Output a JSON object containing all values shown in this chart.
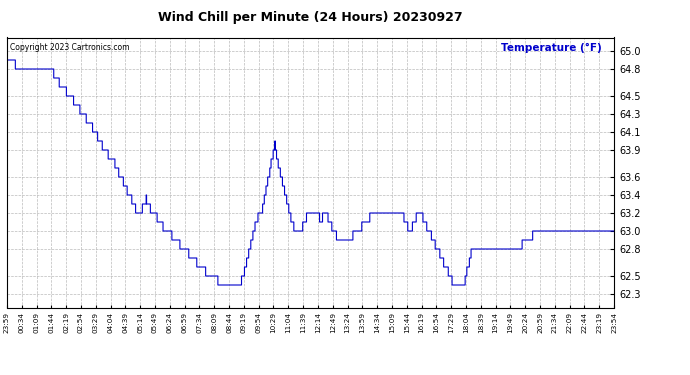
{
  "title": "Wind Chill per Minute (24 Hours) 20230927",
  "ylabel_text": "Temperature (°F)",
  "copyright_text": "Copyright 2023 Cartronics.com",
  "line_color": "#0000cc",
  "ylabel_color": "#0000cc",
  "background_color": "#ffffff",
  "grid_color": "#aaaaaa",
  "yticks": [
    62.3,
    62.5,
    62.8,
    63.0,
    63.2,
    63.4,
    63.6,
    63.9,
    64.1,
    64.3,
    64.5,
    64.8,
    65.0
  ],
  "ylim": [
    62.15,
    65.15
  ],
  "xtick_labels": [
    "23:59",
    "00:34",
    "01:09",
    "01:44",
    "02:19",
    "02:54",
    "03:29",
    "04:04",
    "04:39",
    "05:14",
    "05:49",
    "06:24",
    "06:59",
    "07:34",
    "08:09",
    "08:44",
    "09:19",
    "09:54",
    "10:29",
    "11:04",
    "11:39",
    "12:14",
    "12:49",
    "13:24",
    "13:59",
    "14:34",
    "15:09",
    "15:44",
    "16:19",
    "16:54",
    "17:29",
    "18:04",
    "18:39",
    "19:14",
    "19:49",
    "20:24",
    "20:59",
    "21:34",
    "22:09",
    "22:44",
    "23:19",
    "23:54"
  ],
  "waypoints": [
    [
      0,
      64.9
    ],
    [
      10,
      64.9
    ],
    [
      30,
      64.8
    ],
    [
      60,
      64.8
    ],
    [
      90,
      64.8
    ],
    [
      110,
      64.75
    ],
    [
      130,
      64.6
    ],
    [
      150,
      64.5
    ],
    [
      165,
      64.4
    ],
    [
      180,
      64.3
    ],
    [
      195,
      64.2
    ],
    [
      210,
      64.1
    ],
    [
      220,
      64.0
    ],
    [
      230,
      63.9
    ],
    [
      240,
      63.85
    ],
    [
      250,
      63.8
    ],
    [
      255,
      63.75
    ],
    [
      260,
      63.7
    ],
    [
      270,
      63.6
    ],
    [
      275,
      63.55
    ],
    [
      280,
      63.5
    ],
    [
      285,
      63.45
    ],
    [
      290,
      63.4
    ],
    [
      295,
      63.35
    ],
    [
      300,
      63.3
    ],
    [
      305,
      63.25
    ],
    [
      310,
      63.2
    ],
    [
      315,
      63.2
    ],
    [
      320,
      63.25
    ],
    [
      325,
      63.3
    ],
    [
      330,
      63.35
    ],
    [
      335,
      63.3
    ],
    [
      340,
      63.25
    ],
    [
      345,
      63.2
    ],
    [
      350,
      63.2
    ],
    [
      355,
      63.15
    ],
    [
      360,
      63.1
    ],
    [
      370,
      63.05
    ],
    [
      380,
      63.0
    ],
    [
      390,
      62.95
    ],
    [
      400,
      62.9
    ],
    [
      410,
      62.85
    ],
    [
      420,
      62.8
    ],
    [
      430,
      62.75
    ],
    [
      440,
      62.7
    ],
    [
      450,
      62.65
    ],
    [
      460,
      62.6
    ],
    [
      470,
      62.55
    ],
    [
      480,
      62.5
    ],
    [
      490,
      62.48
    ],
    [
      500,
      62.45
    ],
    [
      510,
      62.43
    ],
    [
      520,
      62.42
    ],
    [
      530,
      62.4
    ],
    [
      540,
      62.38
    ],
    [
      545,
      62.38
    ],
    [
      550,
      62.4
    ],
    [
      555,
      62.45
    ],
    [
      560,
      62.5
    ],
    [
      565,
      62.6
    ],
    [
      570,
      62.7
    ],
    [
      575,
      62.8
    ],
    [
      580,
      62.9
    ],
    [
      585,
      63.0
    ],
    [
      590,
      63.1
    ],
    [
      595,
      63.15
    ],
    [
      600,
      63.2
    ],
    [
      605,
      63.25
    ],
    [
      608,
      63.3
    ],
    [
      610,
      63.35
    ],
    [
      612,
      63.4
    ],
    [
      615,
      63.5
    ],
    [
      618,
      63.55
    ],
    [
      620,
      63.6
    ],
    [
      622,
      63.65
    ],
    [
      624,
      63.7
    ],
    [
      626,
      63.75
    ],
    [
      628,
      63.8
    ],
    [
      630,
      63.85
    ],
    [
      632,
      63.9
    ],
    [
      635,
      63.95
    ],
    [
      637,
      63.9
    ],
    [
      640,
      63.8
    ],
    [
      645,
      63.7
    ],
    [
      650,
      63.6
    ],
    [
      655,
      63.5
    ],
    [
      660,
      63.4
    ],
    [
      665,
      63.3
    ],
    [
      670,
      63.2
    ],
    [
      675,
      63.1
    ],
    [
      680,
      63.05
    ],
    [
      685,
      63.0
    ],
    [
      690,
      62.95
    ],
    [
      695,
      63.0
    ],
    [
      700,
      63.05
    ],
    [
      705,
      63.1
    ],
    [
      710,
      63.15
    ],
    [
      715,
      63.2
    ],
    [
      720,
      63.2
    ],
    [
      725,
      63.25
    ],
    [
      730,
      63.2
    ],
    [
      735,
      63.2
    ],
    [
      740,
      63.15
    ],
    [
      745,
      63.1
    ],
    [
      750,
      63.2
    ],
    [
      755,
      63.2
    ],
    [
      760,
      63.15
    ],
    [
      765,
      63.1
    ],
    [
      770,
      63.05
    ],
    [
      775,
      63.0
    ],
    [
      780,
      62.95
    ],
    [
      785,
      62.9
    ],
    [
      790,
      62.9
    ],
    [
      800,
      62.9
    ],
    [
      810,
      62.9
    ],
    [
      820,
      62.95
    ],
    [
      830,
      63.0
    ],
    [
      840,
      63.05
    ],
    [
      850,
      63.1
    ],
    [
      860,
      63.15
    ],
    [
      870,
      63.2
    ],
    [
      880,
      63.2
    ],
    [
      890,
      63.2
    ],
    [
      900,
      63.2
    ],
    [
      910,
      63.2
    ],
    [
      920,
      63.2
    ],
    [
      930,
      63.2
    ],
    [
      940,
      63.15
    ],
    [
      945,
      63.1
    ],
    [
      950,
      63.05
    ],
    [
      955,
      63.0
    ],
    [
      960,
      63.05
    ],
    [
      965,
      63.1
    ],
    [
      970,
      63.15
    ],
    [
      975,
      63.2
    ],
    [
      980,
      63.2
    ],
    [
      985,
      63.15
    ],
    [
      990,
      63.1
    ],
    [
      995,
      63.05
    ],
    [
      1000,
      63.0
    ],
    [
      1005,
      62.95
    ],
    [
      1010,
      62.9
    ],
    [
      1015,
      62.85
    ],
    [
      1020,
      62.8
    ],
    [
      1025,
      62.75
    ],
    [
      1030,
      62.7
    ],
    [
      1035,
      62.65
    ],
    [
      1040,
      62.6
    ],
    [
      1045,
      62.55
    ],
    [
      1050,
      62.5
    ],
    [
      1055,
      62.45
    ],
    [
      1060,
      62.4
    ],
    [
      1065,
      62.38
    ],
    [
      1070,
      62.35
    ],
    [
      1075,
      62.35
    ],
    [
      1080,
      62.38
    ],
    [
      1085,
      62.45
    ],
    [
      1090,
      62.55
    ],
    [
      1095,
      62.65
    ],
    [
      1100,
      62.75
    ],
    [
      1105,
      62.8
    ],
    [
      1110,
      62.82
    ],
    [
      1120,
      62.82
    ],
    [
      1140,
      62.82
    ],
    [
      1160,
      62.82
    ],
    [
      1200,
      62.82
    ],
    [
      1220,
      62.85
    ],
    [
      1240,
      62.88
    ],
    [
      1250,
      63.0
    ],
    [
      1260,
      63.0
    ],
    [
      1439,
      63.0
    ]
  ]
}
